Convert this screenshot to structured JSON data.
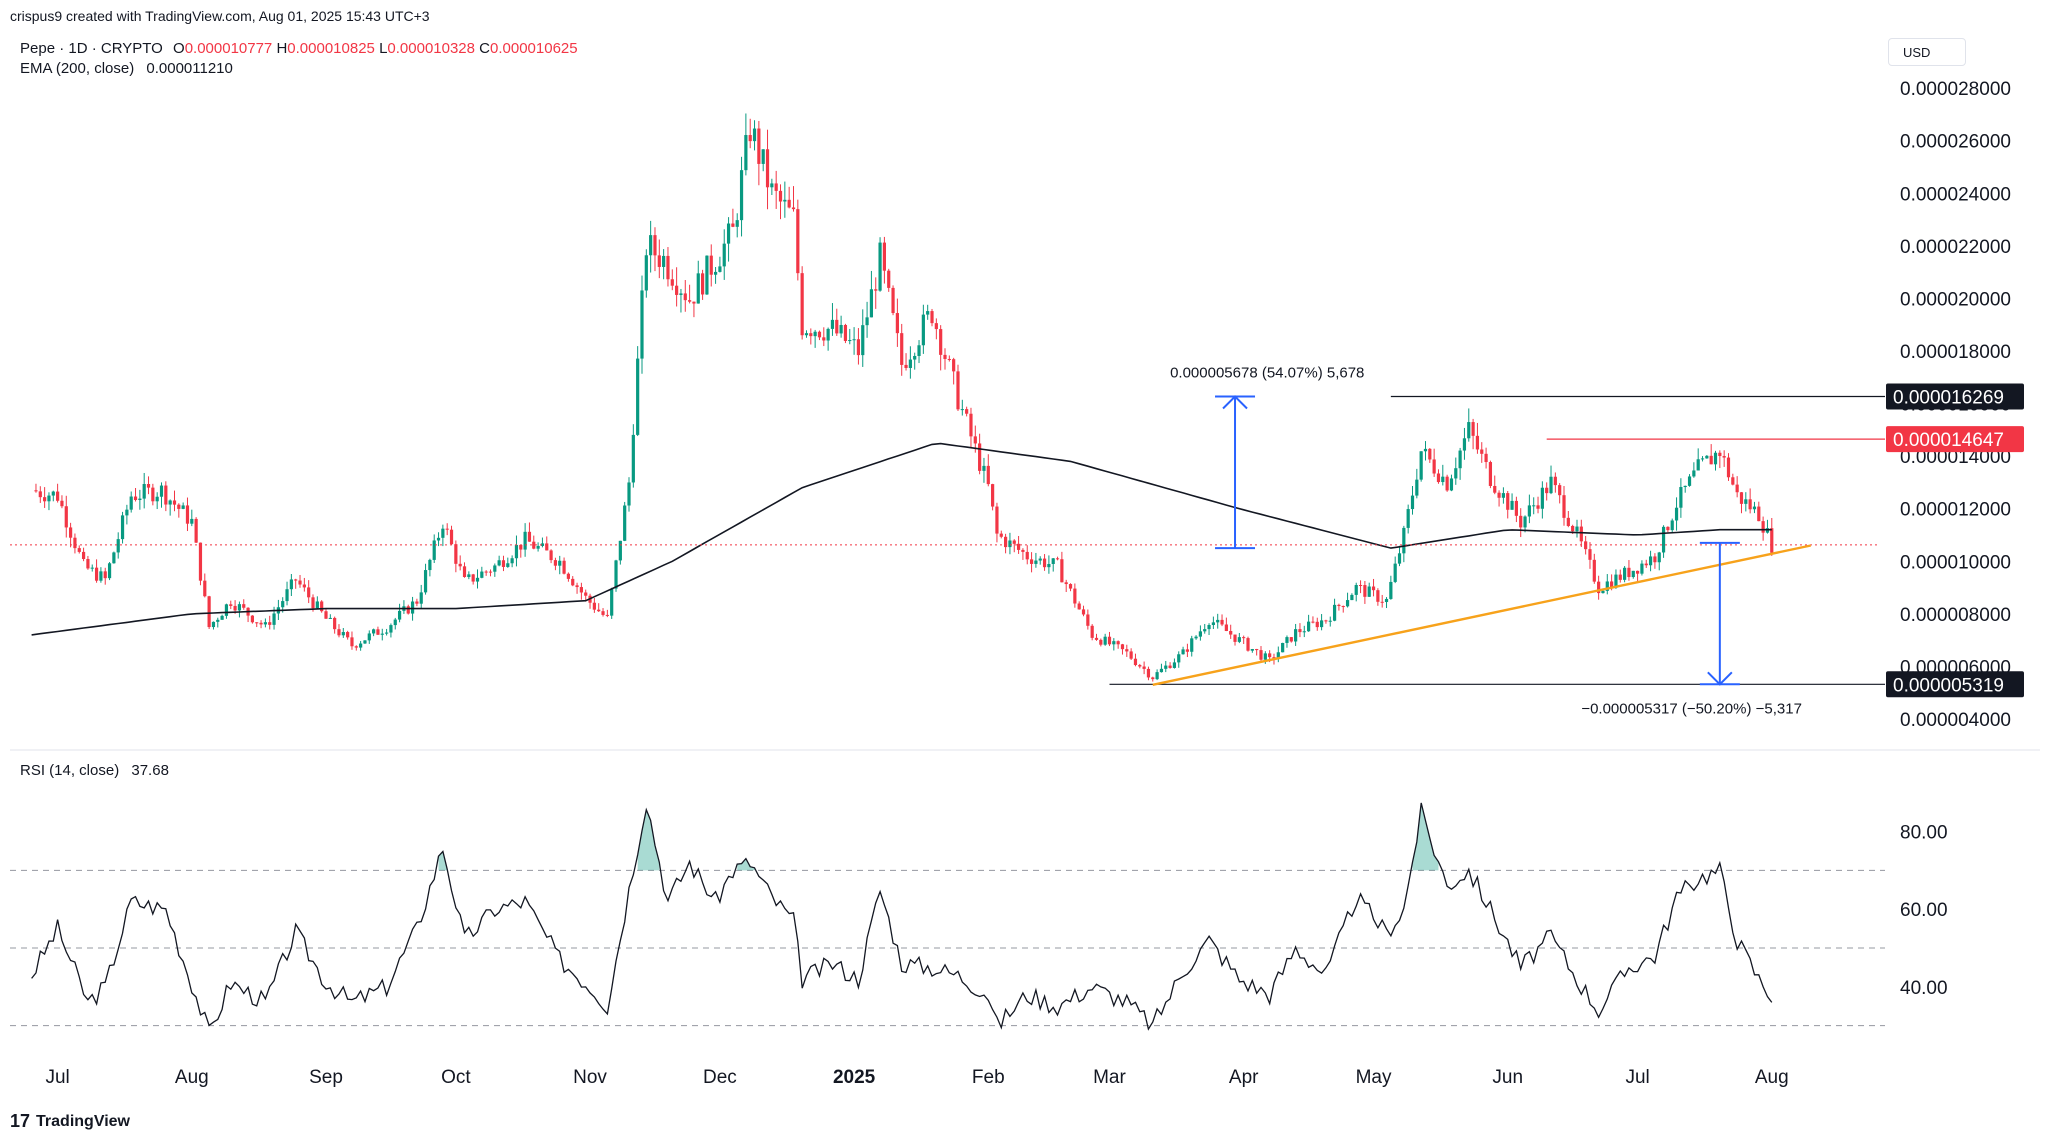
{
  "attribution": "crispus9 created with TradingView.com, Aug 01, 2025 15:43 UTC+3",
  "symbol_line": {
    "symbol": "Pepe · 1D · CRYPTO",
    "open_label": "O",
    "open": "0.000010777",
    "high_label": "H",
    "high": "0.000010825",
    "low_label": "L",
    "low": "0.000010328",
    "close_label": "C",
    "close": "0.000010625"
  },
  "ema_line": {
    "label": "EMA (200, close)",
    "value": "0.000011210"
  },
  "rsi_line": {
    "label": "RSI (14, close)",
    "value": "37.68"
  },
  "currency_button": "USD",
  "branding": "TradingView",
  "colors": {
    "up": "#089981",
    "down": "#f23645",
    "ema": "#131722",
    "trendline": "#f7a21b",
    "measure": "#2962ff",
    "resistance": "#f23645",
    "rsi_fill": "#089981"
  },
  "chart_data": [
    {
      "type": "candlestick",
      "title": "Pepe · 1D · CRYPTO",
      "currency": "USD",
      "x_ticks": [
        "Jul",
        "Aug",
        "Sep",
        "Oct",
        "Nov",
        "Dec",
        "2025",
        "Feb",
        "Mar",
        "Apr",
        "May",
        "Jun",
        "Jul",
        "Aug"
      ],
      "y_ticks": [
        "0.000004000",
        "0.000006000",
        "0.000008000",
        "0.000010000",
        "0.000012000",
        "0.000014000",
        "0.000016000",
        "0.000018000",
        "0.000020000",
        "0.000022000",
        "0.000024000",
        "0.000026000",
        "0.000028000"
      ],
      "ylim": [
        3.2e-06,
        2.85e-05
      ],
      "price_path": [
        [
          "2024-06-25",
          1.27e-05
        ],
        [
          "2024-07-01",
          1.25e-05
        ],
        [
          "2024-07-07",
          9.8e-06
        ],
        [
          "2024-07-12",
          9.3e-06
        ],
        [
          "2024-07-18",
          1.25e-05
        ],
        [
          "2024-07-25",
          1.27e-05
        ],
        [
          "2024-08-01",
          1.15e-05
        ],
        [
          "2024-08-05",
          7.5e-06
        ],
        [
          "2024-08-10",
          8.5e-06
        ],
        [
          "2024-08-18",
          7.5e-06
        ],
        [
          "2024-08-25",
          9.3e-06
        ],
        [
          "2024-09-01",
          7.8e-06
        ],
        [
          "2024-09-07",
          6.8e-06
        ],
        [
          "2024-09-15",
          7.5e-06
        ],
        [
          "2024-09-22",
          8.5e-06
        ],
        [
          "2024-09-28",
          1.15e-05
        ],
        [
          "2024-10-03",
          9.2e-06
        ],
        [
          "2024-10-10",
          9.8e-06
        ],
        [
          "2024-10-17",
          1.08e-05
        ],
        [
          "2024-10-25",
          1e-05
        ],
        [
          "2024-10-31",
          8.6e-06
        ],
        [
          "2024-11-05",
          7.8e-06
        ],
        [
          "2024-11-10",
          1.3e-05
        ],
        [
          "2024-11-14",
          2.2e-05
        ],
        [
          "2024-11-18",
          2.15e-05
        ],
        [
          "2024-11-24",
          2e-05
        ],
        [
          "2024-11-30",
          2.15e-05
        ],
        [
          "2024-12-04",
          2.25e-05
        ],
        [
          "2024-12-08",
          2.65e-05
        ],
        [
          "2024-12-13",
          2.4e-05
        ],
        [
          "2024-12-18",
          2.3e-05
        ],
        [
          "2024-12-20",
          1.9e-05
        ],
        [
          "2024-12-27",
          1.88e-05
        ],
        [
          "2025-01-02",
          1.8e-05
        ],
        [
          "2025-01-07",
          2.15e-05
        ],
        [
          "2025-01-12",
          1.75e-05
        ],
        [
          "2025-01-19",
          1.95e-05
        ],
        [
          "2025-01-25",
          1.62e-05
        ],
        [
          "2025-02-01",
          1.28e-05
        ],
        [
          "2025-02-03",
          1.1e-05
        ],
        [
          "2025-02-10",
          1.02e-05
        ],
        [
          "2025-02-17",
          9.8e-06
        ],
        [
          "2025-02-25",
          7.2e-06
        ],
        [
          "2025-03-05",
          6.5e-06
        ],
        [
          "2025-03-11",
          5.6e-06
        ],
        [
          "2025-03-18",
          6.5e-06
        ],
        [
          "2025-03-24",
          7.8e-06
        ],
        [
          "2025-03-31",
          7e-06
        ],
        [
          "2025-04-07",
          6.2e-06
        ],
        [
          "2025-04-13",
          7.3e-06
        ],
        [
          "2025-04-20",
          7.8e-06
        ],
        [
          "2025-04-27",
          9e-06
        ],
        [
          "2025-05-04",
          8.5e-06
        ],
        [
          "2025-05-08",
          1.1e-05
        ],
        [
          "2025-05-12",
          1.42e-05
        ],
        [
          "2025-05-18",
          1.3e-05
        ],
        [
          "2025-05-23",
          1.5e-05
        ],
        [
          "2025-05-28",
          1.32e-05
        ],
        [
          "2025-06-04",
          1.15e-05
        ],
        [
          "2025-06-11",
          1.3e-05
        ],
        [
          "2025-06-17",
          1.1e-05
        ],
        [
          "2025-06-22",
          9e-06
        ],
        [
          "2025-06-29",
          9.6e-06
        ],
        [
          "2025-07-05",
          1.02e-05
        ],
        [
          "2025-07-10",
          1.22e-05
        ],
        [
          "2025-07-15",
          1.35e-05
        ],
        [
          "2025-07-20",
          1.42e-05
        ],
        [
          "2025-07-24",
          1.25e-05
        ],
        [
          "2025-07-29",
          1.18e-05
        ],
        [
          "2025-08-01",
          1.063e-05
        ]
      ],
      "ema_path": [
        [
          "2024-06-25",
          7.2e-06
        ],
        [
          "2024-08-01",
          8e-06
        ],
        [
          "2024-09-01",
          8.2e-06
        ],
        [
          "2024-10-01",
          8.2e-06
        ],
        [
          "2024-10-31",
          8.5e-06
        ],
        [
          "2024-11-20",
          1e-05
        ],
        [
          "2024-12-20",
          1.28e-05
        ],
        [
          "2025-01-20",
          1.45e-05
        ],
        [
          "2025-02-20",
          1.38e-05
        ],
        [
          "2025-03-31",
          1.2e-05
        ],
        [
          "2025-05-05",
          1.05e-05
        ],
        [
          "2025-06-01",
          1.12e-05
        ],
        [
          "2025-07-01",
          1.1e-05
        ],
        [
          "2025-07-20",
          1.12e-05
        ],
        [
          "2025-08-01",
          1.12e-05
        ]
      ],
      "annotations": {
        "upper_measure_text": "0.000005678 (54.07%) 5,678",
        "lower_measure_text": "−0.000005317 (−50.20%) −5,317",
        "resistance_level": "0.000016269",
        "red_level": "0.000014647",
        "support_level": "0.000005319",
        "current_price_line": 1.0625e-05,
        "trendline": [
          [
            "2025-03-11",
            5.3e-06
          ],
          [
            "2025-08-10",
            1.06e-05
          ]
        ]
      }
    },
    {
      "type": "line",
      "title": "RSI (14, close)",
      "y_ticks": [
        "40.00",
        "60.00",
        "80.00"
      ],
      "ylim": [
        25,
        92
      ],
      "levels": [
        30,
        50,
        70
      ],
      "rsi_path": [
        [
          "2024-06-25",
          43
        ],
        [
          "2024-07-01",
          55
        ],
        [
          "2024-07-08",
          36
        ],
        [
          "2024-07-12",
          40
        ],
        [
          "2024-07-18",
          62
        ],
        [
          "2024-07-26",
          60
        ],
        [
          "2024-08-05",
          28
        ],
        [
          "2024-08-10",
          41
        ],
        [
          "2024-08-18",
          36
        ],
        [
          "2024-08-25",
          54
        ],
        [
          "2024-09-01",
          41
        ],
        [
          "2024-09-07",
          36
        ],
        [
          "2024-09-15",
          40
        ],
        [
          "2024-09-22",
          55
        ],
        [
          "2024-09-28",
          76
        ],
        [
          "2024-10-03",
          52
        ],
        [
          "2024-10-10",
          60
        ],
        [
          "2024-10-17",
          62
        ],
        [
          "2024-10-25",
          47
        ],
        [
          "2024-11-02",
          39
        ],
        [
          "2024-11-05",
          35
        ],
        [
          "2024-11-10",
          65
        ],
        [
          "2024-11-14",
          88
        ],
        [
          "2024-11-19",
          62
        ],
        [
          "2024-11-24",
          72
        ],
        [
          "2024-11-30",
          62
        ],
        [
          "2024-12-04",
          70
        ],
        [
          "2024-12-08",
          72
        ],
        [
          "2024-12-13",
          63
        ],
        [
          "2024-12-18",
          57
        ],
        [
          "2024-12-20",
          42
        ],
        [
          "2024-12-27",
          46
        ],
        [
          "2025-01-02",
          42
        ],
        [
          "2025-01-07",
          65
        ],
        [
          "2025-01-12",
          46
        ],
        [
          "2025-01-19",
          45
        ],
        [
          "2025-01-25",
          43
        ],
        [
          "2025-02-01",
          38
        ],
        [
          "2025-02-03",
          30
        ],
        [
          "2025-02-10",
          38
        ],
        [
          "2025-02-17",
          35
        ],
        [
          "2025-02-25",
          40
        ],
        [
          "2025-03-05",
          36
        ],
        [
          "2025-03-11",
          30
        ],
        [
          "2025-03-18",
          44
        ],
        [
          "2025-03-24",
          52
        ],
        [
          "2025-03-31",
          42
        ],
        [
          "2025-04-07",
          38
        ],
        [
          "2025-04-13",
          50
        ],
        [
          "2025-04-20",
          43
        ],
        [
          "2025-04-27",
          63
        ],
        [
          "2025-05-04",
          54
        ],
        [
          "2025-05-08",
          60
        ],
        [
          "2025-05-12",
          85
        ],
        [
          "2025-05-18",
          66
        ],
        [
          "2025-05-23",
          70
        ],
        [
          "2025-05-28",
          60
        ],
        [
          "2025-06-04",
          45
        ],
        [
          "2025-06-11",
          53
        ],
        [
          "2025-06-17",
          42
        ],
        [
          "2025-06-22",
          34
        ],
        [
          "2025-06-29",
          45
        ],
        [
          "2025-07-05",
          48
        ],
        [
          "2025-07-10",
          63
        ],
        [
          "2025-07-15",
          68
        ],
        [
          "2025-07-20",
          70
        ],
        [
          "2025-07-24",
          52
        ],
        [
          "2025-07-29",
          42
        ],
        [
          "2025-08-01",
          37.68
        ]
      ]
    }
  ]
}
